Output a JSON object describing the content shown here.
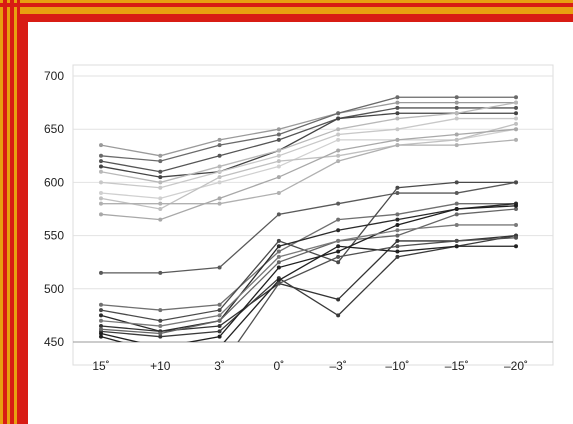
{
  "chart_data": {
    "type": "line",
    "title": "",
    "xlabel": "",
    "ylabel": "",
    "categories": [
      "15˚",
      "+10",
      "3˚",
      "0˚",
      "–3˚",
      "–10˚",
      "–15˚",
      "–20˚"
    ],
    "y_ticks": [
      "700",
      "650",
      "600",
      "550",
      "500",
      "450"
    ],
    "ylim": [
      450,
      700
    ],
    "grid": true,
    "legend": "none",
    "series": [
      {
        "color": "#9a9a9a",
        "values": [
          635,
          625,
          640,
          650,
          665,
          675,
          675,
          675
        ]
      },
      {
        "color": "#6a6a6a",
        "values": [
          625,
          620,
          635,
          645,
          665,
          680,
          680,
          680
        ]
      },
      {
        "color": "#555555",
        "values": [
          620,
          610,
          625,
          640,
          660,
          670,
          670,
          670
        ]
      },
      {
        "color": "#444444",
        "values": [
          615,
          605,
          610,
          630,
          660,
          665,
          665,
          665
        ]
      },
      {
        "color": "#b8b8b8",
        "values": [
          610,
          600,
          615,
          630,
          650,
          660,
          665,
          675
        ]
      },
      {
        "color": "#c8c8c8",
        "values": [
          600,
          595,
          610,
          625,
          645,
          650,
          660,
          660
        ]
      },
      {
        "color": "#d0d0d0",
        "values": [
          590,
          585,
          600,
          615,
          640,
          640,
          640,
          650
        ]
      },
      {
        "color": "#c0c0c0",
        "values": [
          585,
          575,
          605,
          620,
          625,
          635,
          640,
          655
        ]
      },
      {
        "color": "#b0b0b0",
        "values": [
          580,
          580,
          580,
          590,
          620,
          635,
          635,
          640
        ]
      },
      {
        "color": "#a8a8a8",
        "values": [
          570,
          565,
          585,
          605,
          630,
          640,
          645,
          650
        ]
      },
      {
        "color": "#5a5a5a",
        "values": [
          515,
          515,
          520,
          570,
          580,
          590,
          590,
          600
        ]
      },
      {
        "color": "#707070",
        "values": [
          485,
          480,
          485,
          535,
          565,
          570,
          580,
          580
        ]
      },
      {
        "color": "#4a4a4a",
        "values": [
          480,
          470,
          480,
          545,
          525,
          595,
          600,
          600
        ]
      },
      {
        "color": "#2a2a2a",
        "values": [
          475,
          460,
          470,
          540,
          555,
          565,
          575,
          580
        ]
      },
      {
        "color": "#333333",
        "values": [
          465,
          460,
          465,
          505,
          490,
          545,
          545,
          550
        ]
      },
      {
        "color": "#3a3a3a",
        "values": [
          460,
          455,
          460,
          510,
          475,
          530,
          540,
          550
        ]
      },
      {
        "color": "#222222",
        "values": [
          455,
          440,
          445,
          508,
          540,
          535,
          540,
          540
        ]
      },
      {
        "color": "#666666",
        "values": [
          462,
          458,
          470,
          525,
          545,
          550,
          570,
          575
        ]
      },
      {
        "color": "#1f1f1f",
        "values": [
          458,
          445,
          455,
          520,
          535,
          560,
          575,
          578
        ]
      },
      {
        "color": "#7a7a7a",
        "values": [
          470,
          465,
          475,
          530,
          545,
          555,
          560,
          560
        ]
      },
      {
        "color": "#505050",
        "values": [
          440,
          430,
          425,
          505,
          530,
          540,
          545,
          548
        ]
      }
    ]
  }
}
